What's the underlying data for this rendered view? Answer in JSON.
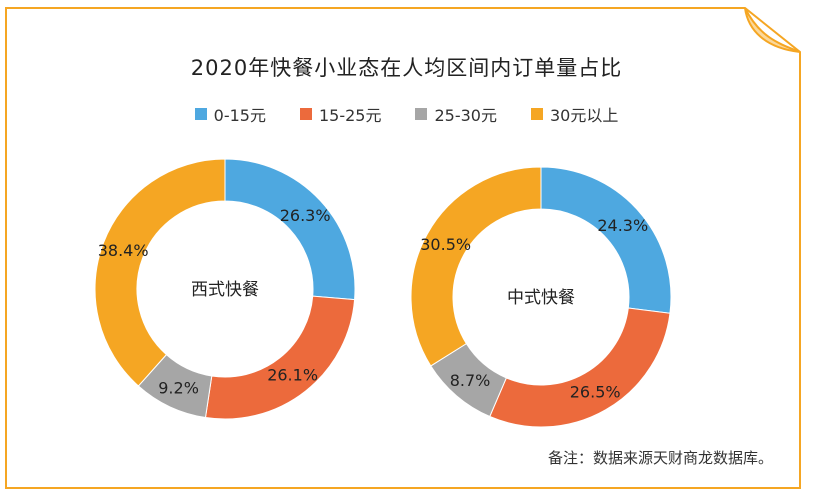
{
  "title": "2020年快餐小业态在人均区间内订单量占比",
  "note": "备注：数据来源天财商龙数据库。",
  "colors": {
    "frame": "#f5a623",
    "series": [
      "#4ea8e0",
      "#ec6a3c",
      "#a6a6a6",
      "#f5a623"
    ]
  },
  "chart_data": [
    {
      "type": "pie",
      "center_label": "西式快餐",
      "categories": [
        "0-15元",
        "15-25元",
        "25-30元",
        "30元以上"
      ],
      "values": [
        26.3,
        26.1,
        9.2,
        38.4
      ],
      "labels": [
        "26.3%",
        "26.1%",
        "9.2%",
        "38.4%"
      ]
    },
    {
      "type": "pie",
      "center_label": "中式快餐",
      "categories": [
        "0-15元",
        "15-25元",
        "25-30元",
        "30元以上"
      ],
      "values": [
        24.3,
        26.5,
        8.7,
        30.5
      ],
      "labels": [
        "24.3%",
        "26.5%",
        "8.7%",
        "30.5%"
      ]
    }
  ],
  "legend": [
    "0-15元",
    "15-25元",
    "25-30元",
    "30元以上"
  ]
}
